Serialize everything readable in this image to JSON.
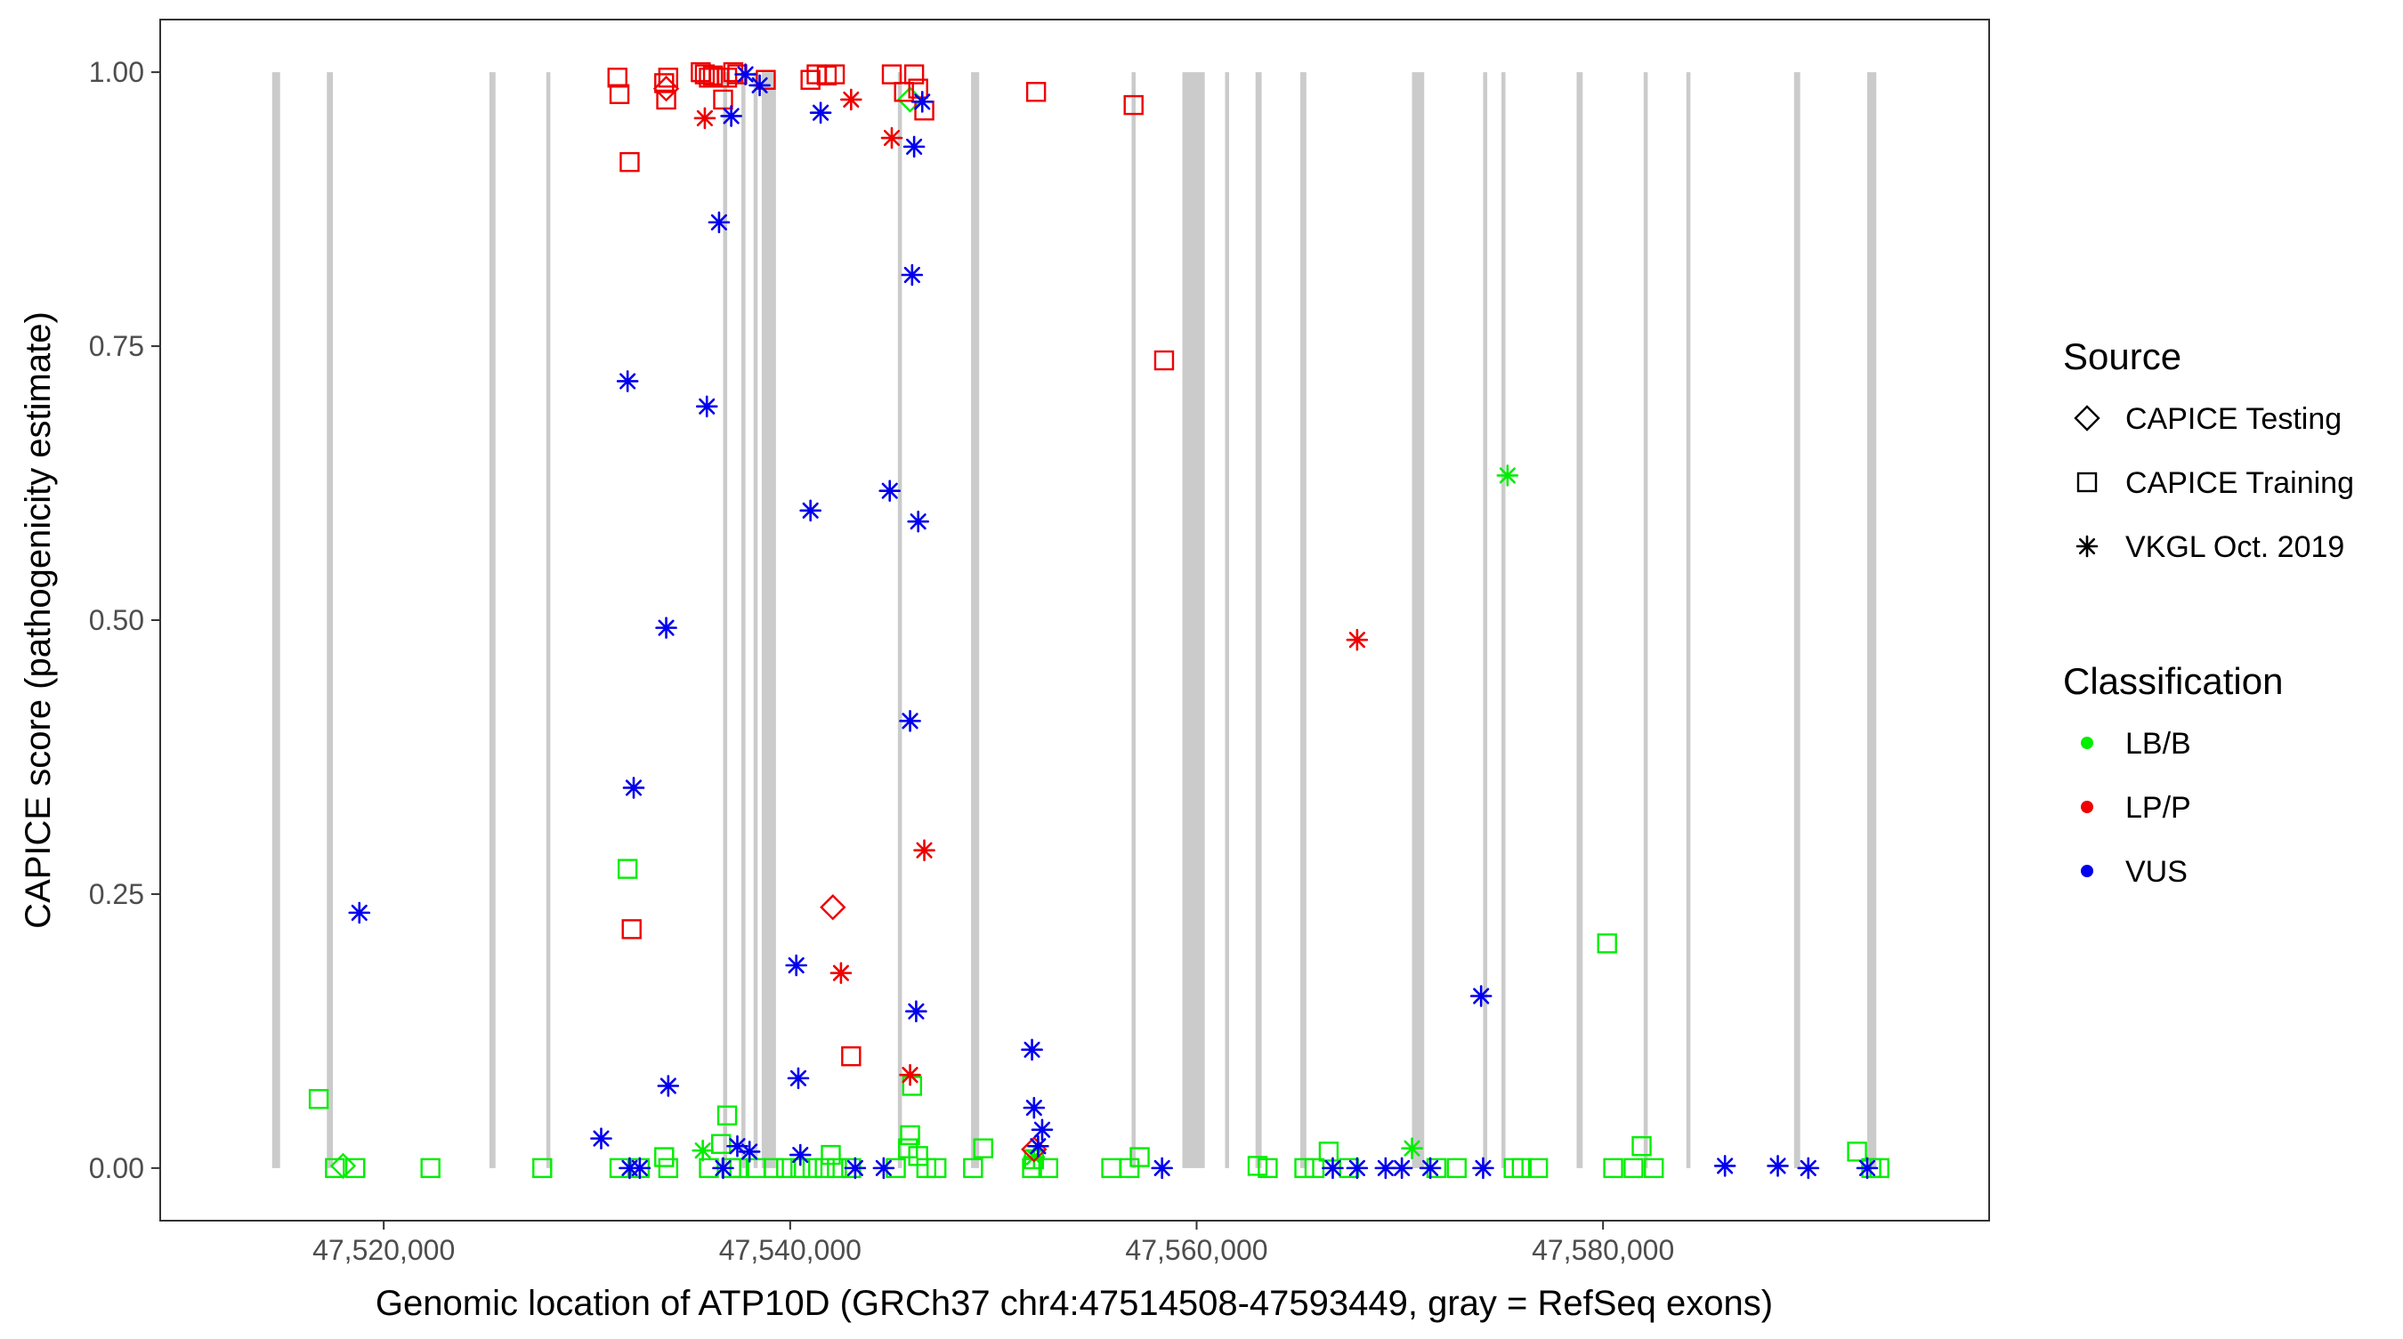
{
  "chart_data": {
    "type": "scatter",
    "xlabel": "Genomic location of ATP10D (GRCh37 chr4:47514508-47593449, gray = RefSeq exons)",
    "ylabel": "CAPICE score (pathogenicity estimate)",
    "xlim": [
      47509000,
      47599000
    ],
    "ylim": [
      -0.048,
      1.048
    ],
    "x_ticks": [
      {
        "value": 47520000,
        "label": "47,520,000"
      },
      {
        "value": 47540000,
        "label": "47,540,000"
      },
      {
        "value": 47560000,
        "label": "47,560,000"
      },
      {
        "value": 47580000,
        "label": "47,580,000"
      }
    ],
    "y_ticks": [
      {
        "value": 0.0,
        "label": "0.00"
      },
      {
        "value": 0.25,
        "label": "0.25"
      },
      {
        "value": 0.5,
        "label": "0.50"
      },
      {
        "value": 0.75,
        "label": "0.75"
      },
      {
        "value": 1.0,
        "label": "1.00"
      }
    ],
    "exons": [
      [
        47514508,
        47514900
      ],
      [
        47517200,
        47517500
      ],
      [
        47525200,
        47525500
      ],
      [
        47528000,
        47528200
      ],
      [
        47536700,
        47536900
      ],
      [
        47537600,
        47537800
      ],
      [
        47538200,
        47538400
      ],
      [
        47538600,
        47539300
      ],
      [
        47545300,
        47545500
      ],
      [
        47548900,
        47549300
      ],
      [
        47556800,
        47557000
      ],
      [
        47559300,
        47560400
      ],
      [
        47561400,
        47561600
      ],
      [
        47562900,
        47563200
      ],
      [
        47565100,
        47565400
      ],
      [
        47570600,
        47571200
      ],
      [
        47574100,
        47574300
      ],
      [
        47575000,
        47575200
      ],
      [
        47578700,
        47579000
      ],
      [
        47582000,
        47582200
      ],
      [
        47584100,
        47584300
      ],
      [
        47589400,
        47589700
      ],
      [
        47593000,
        47593449
      ]
    ],
    "legend": {
      "position": "right",
      "source_title": "Source",
      "source_items": [
        {
          "label": "CAPICE Testing",
          "shape": "diamond"
        },
        {
          "label": "CAPICE Training",
          "shape": "square"
        },
        {
          "label": "VKGL Oct. 2019",
          "shape": "asterisk"
        }
      ],
      "class_title": "Classification",
      "class_items": [
        {
          "label": "LB/B",
          "color": "#00ee00"
        },
        {
          "label": "LP/P",
          "color": "#ee0000"
        },
        {
          "label": "VUS",
          "color": "#0000ee"
        }
      ]
    },
    "series": [
      {
        "classification": "LB/B",
        "source": "CAPICE Training",
        "shape": "square",
        "color": "#00ee00",
        "x": [
          47516800,
          47517600,
          47518600,
          47522300,
          47527800,
          47531600,
          47532000,
          47532600,
          47533800,
          47534000,
          47536000,
          47536600,
          47536900,
          47537100,
          47537500,
          47538300,
          47539200,
          47539800,
          47540500,
          47541100,
          47541700,
          47542000,
          47542300,
          47543000,
          47545200,
          47545800,
          47545900,
          47546000,
          47546300,
          47546700,
          47547200,
          47549000,
          47549500,
          47551900,
          47552000,
          47552700,
          47555800,
          47556700,
          47557200,
          47563000,
          47563500,
          47565300,
          47565800,
          47566500,
          47567500,
          47571800,
          47572800,
          47575600,
          47576000,
          47576800,
          47580200,
          47580500,
          47581500,
          47581900,
          47582500,
          47592500,
          47593200,
          47593600
        ],
        "y": [
          0.063,
          0.0,
          0.0,
          0.0,
          0.0,
          0.0,
          0.273,
          0.0,
          0.01,
          0.0,
          0.0,
          0.022,
          0.048,
          0.0,
          0.0,
          0.0,
          0.0,
          0.0,
          0.0,
          0.0,
          0.0,
          0.012,
          0.0,
          0.0,
          0.0,
          0.018,
          0.03,
          0.075,
          0.011,
          0.0,
          0.0,
          0.0,
          0.018,
          0.0,
          0.008,
          0.0,
          0.0,
          0.0,
          0.01,
          0.002,
          0.0,
          0.0,
          0.0,
          0.015,
          0.0,
          0.0,
          0.0,
          0.0,
          0.0,
          0.0,
          0.205,
          0.0,
          0.0,
          0.02,
          0.0,
          0.015,
          0.0,
          0.0
        ]
      },
      {
        "classification": "LB/B",
        "source": "CAPICE Testing",
        "shape": "diamond",
        "color": "#00ee00",
        "x": [
          47518000,
          47545900
        ],
        "y": [
          0.002,
          0.975
        ]
      },
      {
        "classification": "LB/B",
        "source": "VKGL Oct. 2019",
        "shape": "asterisk",
        "color": "#00ee00",
        "x": [
          47535700,
          47552000,
          47570600,
          47575300
        ],
        "y": [
          0.016,
          0.01,
          0.018,
          0.632
        ]
      },
      {
        "classification": "LP/P",
        "source": "CAPICE Training",
        "shape": "square",
        "color": "#ee0000",
        "x": [
          47531500,
          47531600,
          47532100,
          47532200,
          47533800,
          47534000,
          47533900,
          47535600,
          47535800,
          47536000,
          47536200,
          47536500,
          47536700,
          47536900,
          47537200,
          47537400,
          47538800,
          47541000,
          47541300,
          47541800,
          47542200,
          47543000,
          47545000,
          47545600,
          47546100,
          47546300,
          47546600,
          47552100,
          47556900,
          47558400
        ],
        "y": [
          0.995,
          0.98,
          0.918,
          0.218,
          0.99,
          0.995,
          0.975,
          1.0,
          0.998,
          0.995,
          0.997,
          0.995,
          0.975,
          0.995,
          1.0,
          0.998,
          0.993,
          0.993,
          0.998,
          0.997,
          0.998,
          0.102,
          0.998,
          0.982,
          0.998,
          0.985,
          0.965,
          0.982,
          0.97,
          0.737
        ],
        "extra": []
      },
      {
        "classification": "LP/P",
        "source": "CAPICE Testing",
        "shape": "diamond",
        "color": "#ee0000",
        "x": [
          47533900,
          47542100,
          47552000
        ],
        "y": [
          0.985,
          0.238,
          0.017
        ]
      },
      {
        "classification": "LP/P",
        "source": "VKGL Oct. 2019",
        "shape": "asterisk",
        "color": "#ee0000",
        "x": [
          47535800,
          47542500,
          47543000,
          47545000,
          47545900,
          47546600,
          47567900
        ],
        "y": [
          0.958,
          0.178,
          0.975,
          0.94,
          0.085,
          0.29,
          0.482
        ]
      },
      {
        "classification": "VUS",
        "source": "VKGL Oct. 2019",
        "shape": "asterisk",
        "color": "#0000ee",
        "x": [
          47518800,
          47530700,
          47532000,
          47532100,
          47532300,
          47532600,
          47533900,
          47534000,
          47535900,
          47536500,
          47536700,
          47537100,
          47537400,
          47537800,
          47538000,
          47538500,
          47540300,
          47540400,
          47540500,
          47541000,
          47541500,
          47543200,
          47544600,
          47544900,
          47545900,
          47546000,
          47546100,
          47546200,
          47546300,
          47546500,
          47551900,
          47552000,
          47552200,
          47552400,
          47558300,
          47566700,
          47567900,
          47569300,
          47570100,
          47571500,
          47574000,
          47574100,
          47586000,
          47588600,
          47590100,
          47593000
        ],
        "y": [
          0.233,
          0.027,
          0.718,
          0.0,
          0.347,
          0.0,
          0.493,
          0.075,
          0.695,
          0.863,
          0.0,
          0.96,
          0.02,
          0.998,
          0.015,
          0.988,
          0.185,
          0.082,
          0.012,
          0.6,
          0.963,
          0.0,
          0.0,
          0.618,
          0.408,
          0.815,
          0.932,
          0.143,
          0.59,
          0.973,
          0.108,
          0.055,
          0.02,
          0.035,
          0.0,
          0.0,
          0.0,
          0.0,
          0.0,
          0.0,
          0.157,
          0.0,
          0.002,
          0.002,
          0.0,
          0.0
        ],
        "extra": []
      }
    ]
  }
}
